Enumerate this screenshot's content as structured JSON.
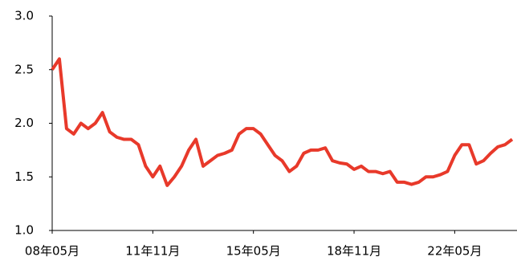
{
  "chart_data": {
    "type": "line",
    "categories": [
      "08年05月",
      null,
      null,
      null,
      null,
      null,
      null,
      null,
      null,
      null,
      null,
      null,
      null,
      null,
      "11年11月",
      null,
      null,
      null,
      null,
      null,
      null,
      null,
      null,
      null,
      null,
      null,
      null,
      null,
      "15年05月",
      null,
      null,
      null,
      null,
      null,
      null,
      null,
      null,
      null,
      null,
      null,
      null,
      null,
      "18年11月",
      null,
      null,
      null,
      null,
      null,
      null,
      null,
      null,
      null,
      null,
      null,
      null,
      null,
      "22年05月",
      null,
      null,
      null,
      null,
      null,
      null,
      null,
      null
    ],
    "series": [
      {
        "color": "#e8392a",
        "values": [
          2.5,
          2.6,
          1.95,
          1.9,
          2.0,
          1.95,
          2.0,
          2.1,
          1.92,
          1.87,
          1.85,
          1.85,
          1.8,
          1.6,
          1.5,
          1.6,
          1.42,
          1.5,
          1.6,
          1.75,
          1.85,
          1.6,
          1.65,
          1.7,
          1.72,
          1.75,
          1.9,
          1.95,
          1.95,
          1.9,
          1.8,
          1.7,
          1.65,
          1.55,
          1.6,
          1.72,
          1.75,
          1.75,
          1.77,
          1.65,
          1.63,
          1.62,
          1.57,
          1.6,
          1.55,
          1.55,
          1.53,
          1.55,
          1.45,
          1.45,
          1.43,
          1.45,
          1.5,
          1.5,
          1.52,
          1.55,
          1.7,
          1.8,
          1.8,
          1.62,
          1.65,
          1.72,
          1.78,
          1.8,
          1.85
        ]
      }
    ],
    "ylim": [
      1.0,
      3.0
    ],
    "yticks": [
      {
        "value": 1.0,
        "label": "1.0"
      },
      {
        "value": 1.5,
        "label": "1.5"
      },
      {
        "value": 2.0,
        "label": "2.0"
      },
      {
        "value": 2.5,
        "label": "2.5"
      },
      {
        "value": 3.0,
        "label": "3.0"
      }
    ]
  }
}
